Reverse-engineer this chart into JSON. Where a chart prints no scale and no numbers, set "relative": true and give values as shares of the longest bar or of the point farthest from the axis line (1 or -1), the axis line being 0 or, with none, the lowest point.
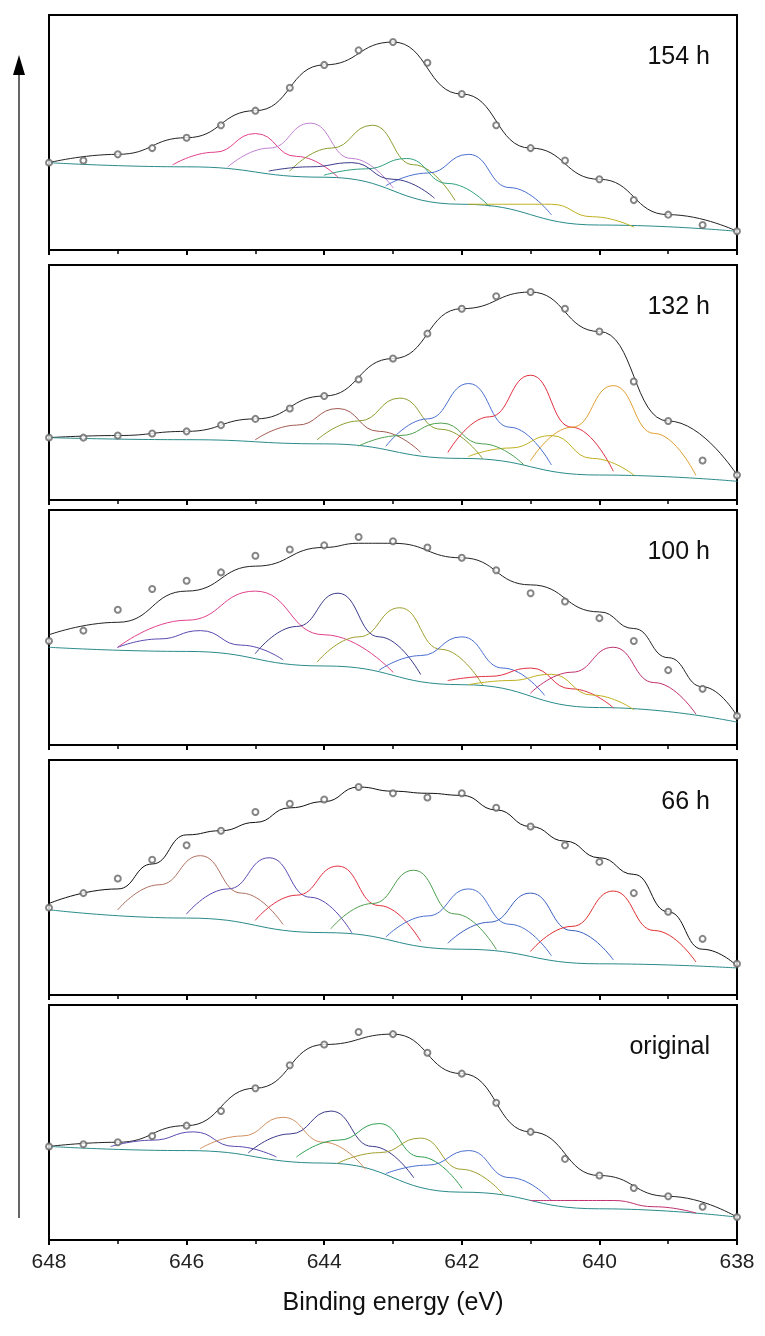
{
  "chart_data": [
    {
      "type": "line",
      "title": "154 h",
      "relative": true,
      "xlim": [
        648,
        638
      ],
      "xticks": [
        648,
        646,
        644,
        642,
        640,
        638
      ],
      "tick_labels": false,
      "series": [
        {
          "type": "scatter",
          "marker": "circle",
          "color": "#666666",
          "x": [
            648,
            647.5,
            647,
            646.5,
            646,
            645.5,
            645,
            644.5,
            644,
            643.5,
            643,
            642.5,
            642,
            641.5,
            641,
            640.5,
            640,
            639.5,
            639,
            638.5,
            638
          ],
          "values": [
            0.42,
            0.43,
            0.46,
            0.49,
            0.54,
            0.6,
            0.67,
            0.78,
            0.89,
            0.96,
            1.0,
            0.9,
            0.75,
            0.6,
            0.49,
            0.43,
            0.34,
            0.24,
            0.17,
            0.12,
            0.09
          ]
        },
        {
          "type": "line",
          "color": "#222222",
          "x": [
            648,
            647,
            646,
            645,
            644,
            643,
            642,
            641,
            640,
            639,
            638
          ],
          "values": [
            0.42,
            0.46,
            0.54,
            0.67,
            0.89,
            1.0,
            0.75,
            0.49,
            0.34,
            0.17,
            0.09
          ]
        },
        {
          "type": "line",
          "color": "#2a8a8a",
          "x": [
            648,
            646,
            644,
            642,
            640,
            638
          ],
          "values": [
            0.42,
            0.4,
            0.35,
            0.22,
            0.12,
            0.09
          ]
        },
        {
          "type": "line",
          "color": "#e0408a",
          "x": [
            646.2,
            645.6,
            645.0,
            644.4,
            643.8
          ],
          "values": [
            0.41,
            0.47,
            0.56,
            0.45,
            0.35
          ]
        },
        {
          "type": "line",
          "color": "#c080d0",
          "x": [
            645.4,
            644.8,
            644.2,
            643.6,
            643.0
          ],
          "values": [
            0.4,
            0.49,
            0.61,
            0.44,
            0.3
          ]
        },
        {
          "type": "line",
          "color": "#8aa030",
          "x": [
            644.5,
            643.9,
            643.3,
            642.7,
            642.1
          ],
          "values": [
            0.38,
            0.49,
            0.6,
            0.41,
            0.24
          ]
        },
        {
          "type": "line",
          "color": "#30a080",
          "x": [
            644.0,
            643.4,
            642.8,
            642.2,
            641.6
          ],
          "values": [
            0.36,
            0.39,
            0.44,
            0.32,
            0.21
          ]
        },
        {
          "type": "line",
          "color": "#4a6fd0",
          "x": [
            643.1,
            642.5,
            641.9,
            641.3,
            640.7
          ],
          "values": [
            0.31,
            0.37,
            0.46,
            0.3,
            0.17
          ]
        },
        {
          "type": "line",
          "color": "#3a3a8a",
          "x": [
            644.8,
            644.2,
            643.6,
            643.0,
            642.4
          ],
          "values": [
            0.38,
            0.4,
            0.42,
            0.34,
            0.25
          ]
        },
        {
          "type": "line",
          "color": "#c0b020",
          "x": [
            641.9,
            641.3,
            640.7,
            640.1,
            639.5
          ],
          "values": [
            0.22,
            0.22,
            0.22,
            0.16,
            0.11
          ]
        }
      ]
    },
    {
      "type": "line",
      "title": "132 h",
      "relative": true,
      "xlim": [
        648,
        638
      ],
      "xticks": [
        648,
        646,
        644,
        642,
        640,
        638
      ],
      "tick_labels": false,
      "series": [
        {
          "type": "scatter",
          "marker": "circle",
          "color": "#666666",
          "x": [
            648,
            647.5,
            647,
            646.5,
            646,
            645.5,
            645,
            644.5,
            644,
            643.5,
            643,
            642.5,
            642,
            641.5,
            641,
            640.5,
            640,
            639.5,
            639,
            638.5,
            638
          ],
          "values": [
            0.3,
            0.3,
            0.31,
            0.32,
            0.33,
            0.36,
            0.39,
            0.44,
            0.5,
            0.58,
            0.68,
            0.8,
            0.92,
            0.98,
            1.0,
            0.92,
            0.81,
            0.57,
            0.38,
            0.19,
            0.12
          ]
        },
        {
          "type": "line",
          "color": "#222222",
          "x": [
            648,
            647,
            646,
            645,
            644,
            643,
            642,
            641,
            640,
            639,
            638
          ],
          "values": [
            0.3,
            0.31,
            0.33,
            0.39,
            0.5,
            0.68,
            0.92,
            1.0,
            0.81,
            0.38,
            0.12
          ]
        },
        {
          "type": "line",
          "color": "#2a8a8a",
          "x": [
            648,
            646,
            644,
            642,
            640,
            638
          ],
          "values": [
            0.3,
            0.29,
            0.27,
            0.2,
            0.12,
            0.09
          ]
        },
        {
          "type": "line",
          "color": "#a05a50",
          "x": [
            645.0,
            644.4,
            643.8,
            643.2,
            642.6
          ],
          "values": [
            0.29,
            0.36,
            0.44,
            0.33,
            0.23
          ]
        },
        {
          "type": "line",
          "color": "#8aa030",
          "x": [
            644.1,
            643.5,
            642.9,
            642.3,
            641.7
          ],
          "values": [
            0.29,
            0.38,
            0.49,
            0.34,
            0.2
          ]
        },
        {
          "type": "line",
          "color": "#4a6fd0",
          "x": [
            643.1,
            642.5,
            641.9,
            641.3,
            640.7
          ],
          "values": [
            0.26,
            0.39,
            0.56,
            0.35,
            0.17
          ]
        },
        {
          "type": "line",
          "color": "#e03040",
          "x": [
            642.2,
            641.6,
            641.0,
            640.4,
            639.8
          ],
          "values": [
            0.23,
            0.4,
            0.6,
            0.35,
            0.14
          ]
        },
        {
          "type": "line",
          "color": "#e0a030",
          "x": [
            641.0,
            640.4,
            639.8,
            639.2,
            638.6
          ],
          "values": [
            0.19,
            0.35,
            0.55,
            0.32,
            0.12
          ]
        },
        {
          "type": "line",
          "color": "#c0b020",
          "x": [
            641.9,
            641.3,
            640.7,
            640.1,
            639.5
          ],
          "values": [
            0.21,
            0.25,
            0.31,
            0.2,
            0.12
          ]
        },
        {
          "type": "line",
          "color": "#50a050",
          "x": [
            643.5,
            642.9,
            642.3,
            641.7,
            641.1
          ],
          "values": [
            0.26,
            0.31,
            0.37,
            0.27,
            0.17
          ]
        }
      ]
    },
    {
      "type": "line",
      "title": "100 h",
      "relative": true,
      "xlim": [
        648,
        638
      ],
      "xticks": [
        648,
        646,
        644,
        642,
        640,
        638
      ],
      "tick_labels": false,
      "series": [
        {
          "type": "scatter",
          "marker": "circle",
          "color": "#666666",
          "x": [
            648,
            647.5,
            647,
            646.5,
            646,
            645.5,
            645,
            644.5,
            644,
            643.5,
            643,
            642.5,
            642,
            641.5,
            641,
            640.5,
            640,
            639.5,
            639,
            638.5,
            638
          ],
          "values": [
            0.5,
            0.55,
            0.65,
            0.75,
            0.79,
            0.83,
            0.91,
            0.94,
            0.96,
            1.0,
            0.98,
            0.95,
            0.9,
            0.84,
            0.73,
            0.69,
            0.61,
            0.5,
            0.36,
            0.27,
            0.14
          ]
        },
        {
          "type": "line",
          "color": "#222222",
          "x": [
            648,
            647,
            646,
            645,
            644,
            643.5,
            643,
            642,
            641,
            640,
            639.5,
            639,
            638.5,
            638
          ],
          "values": [
            0.53,
            0.59,
            0.74,
            0.86,
            0.95,
            0.97,
            0.97,
            0.9,
            0.77,
            0.64,
            0.56,
            0.42,
            0.28,
            0.14
          ]
        },
        {
          "type": "line",
          "color": "#2a8a8a",
          "x": [
            648,
            646,
            644,
            642,
            640,
            638
          ],
          "values": [
            0.47,
            0.45,
            0.38,
            0.29,
            0.18,
            0.11
          ]
        },
        {
          "type": "line",
          "color": "#e0408a",
          "x": [
            647.0,
            646.0,
            645.0,
            644.0,
            643.0
          ],
          "values": [
            0.47,
            0.6,
            0.74,
            0.53,
            0.35
          ]
        },
        {
          "type": "line",
          "color": "#5a4ab0",
          "x": [
            647.0,
            646.4,
            645.8,
            645.2,
            644.6
          ],
          "values": [
            0.47,
            0.51,
            0.55,
            0.48,
            0.41
          ]
        },
        {
          "type": "line",
          "color": "#3a3a8a",
          "x": [
            645.0,
            644.4,
            643.8,
            643.2,
            642.6
          ],
          "values": [
            0.44,
            0.57,
            0.73,
            0.52,
            0.34
          ]
        },
        {
          "type": "line",
          "color": "#a0a030",
          "x": [
            644.1,
            643.5,
            642.9,
            642.3,
            641.7
          ],
          "values": [
            0.4,
            0.52,
            0.66,
            0.46,
            0.29
          ]
        },
        {
          "type": "line",
          "color": "#4a6fd0",
          "x": [
            643.2,
            642.6,
            642.0,
            641.4,
            640.8
          ],
          "values": [
            0.36,
            0.43,
            0.52,
            0.37,
            0.24
          ]
        },
        {
          "type": "line",
          "color": "#e03040",
          "x": [
            642.2,
            641.6,
            641.0,
            640.4,
            639.8
          ],
          "values": [
            0.31,
            0.33,
            0.37,
            0.27,
            0.18
          ]
        },
        {
          "type": "line",
          "color": "#c0b020",
          "x": [
            641.9,
            641.3,
            640.7,
            640.1,
            639.5
          ],
          "values": [
            0.29,
            0.31,
            0.34,
            0.24,
            0.17
          ]
        },
        {
          "type": "line",
          "color": "#c03070",
          "x": [
            641.0,
            640.4,
            639.8,
            639.2,
            638.6
          ],
          "values": [
            0.25,
            0.35,
            0.47,
            0.3,
            0.15
          ]
        }
      ]
    },
    {
      "type": "line",
      "title": "66 h",
      "relative": true,
      "xlim": [
        648,
        638
      ],
      "xticks": [
        648,
        646,
        644,
        642,
        640,
        638
      ],
      "tick_labels": false,
      "series": [
        {
          "type": "scatter",
          "marker": "circle",
          "color": "#666666",
          "x": [
            648,
            647.5,
            647,
            646.5,
            646,
            645.5,
            645,
            644.5,
            644,
            643.5,
            643,
            642.5,
            642,
            641.5,
            641,
            640.5,
            640,
            639.5,
            639,
            638.5,
            638
          ],
          "values": [
            0.42,
            0.49,
            0.56,
            0.65,
            0.72,
            0.79,
            0.88,
            0.92,
            0.94,
            1.0,
            0.97,
            0.95,
            0.97,
            0.9,
            0.81,
            0.72,
            0.64,
            0.49,
            0.4,
            0.27,
            0.15
          ]
        },
        {
          "type": "line",
          "color": "#111111",
          "x": [
            648,
            647,
            646.5,
            646,
            645.5,
            645,
            644.5,
            644,
            643.5,
            643,
            642.5,
            642,
            641.5,
            641,
            640.5,
            640,
            639.5,
            639,
            638.5,
            638
          ],
          "values": [
            0.44,
            0.51,
            0.63,
            0.77,
            0.79,
            0.83,
            0.9,
            0.93,
            1.0,
            0.98,
            0.97,
            0.96,
            0.89,
            0.81,
            0.74,
            0.66,
            0.58,
            0.4,
            0.22,
            0.14
          ]
        },
        {
          "type": "line",
          "color": "#2a8a8a",
          "x": [
            648,
            646,
            644,
            642,
            640,
            638
          ],
          "values": [
            0.41,
            0.37,
            0.3,
            0.22,
            0.15,
            0.13
          ]
        },
        {
          "type": "line",
          "color": "#b07060",
          "x": [
            647.0,
            646.4,
            645.8,
            645.2,
            644.6
          ],
          "values": [
            0.41,
            0.53,
            0.67,
            0.49,
            0.34
          ]
        },
        {
          "type": "line",
          "color": "#5a4ab0",
          "x": [
            646.0,
            645.4,
            644.8,
            644.2,
            643.6
          ],
          "values": [
            0.39,
            0.51,
            0.66,
            0.47,
            0.3
          ]
        },
        {
          "type": "line",
          "color": "#e03040",
          "x": [
            645.0,
            644.4,
            643.8,
            643.2,
            642.6
          ],
          "values": [
            0.36,
            0.48,
            0.62,
            0.43,
            0.26
          ]
        },
        {
          "type": "line",
          "color": "#50a050",
          "x": [
            643.9,
            643.3,
            642.7,
            642.1,
            641.5
          ],
          "values": [
            0.32,
            0.44,
            0.6,
            0.39,
            0.22
          ]
        },
        {
          "type": "line",
          "color": "#4a70d0",
          "x": [
            643.1,
            642.5,
            641.9,
            641.3,
            640.7
          ],
          "values": [
            0.28,
            0.38,
            0.51,
            0.34,
            0.19
          ]
        },
        {
          "type": "line",
          "color": "#3a60c0",
          "x": [
            642.2,
            641.6,
            641.0,
            640.4,
            639.8
          ],
          "values": [
            0.25,
            0.35,
            0.49,
            0.31,
            0.17
          ]
        },
        {
          "type": "line",
          "color": "#e03030",
          "x": [
            641.0,
            640.4,
            639.8,
            639.2,
            638.6
          ],
          "values": [
            0.21,
            0.33,
            0.5,
            0.31,
            0.16
          ]
        }
      ]
    },
    {
      "type": "line",
      "title": "original",
      "xlabel": "Binding energy (eV)",
      "relative": true,
      "xlim": [
        648,
        638
      ],
      "xticks": [
        648,
        646,
        644,
        642,
        640,
        638
      ],
      "tick_labels": "x",
      "series": [
        {
          "type": "scatter",
          "marker": "circle",
          "color": "#666666",
          "x": [
            648,
            647.5,
            647,
            646.5,
            646,
            645.5,
            645,
            644.5,
            644,
            643.5,
            643,
            642.5,
            642,
            641.5,
            641,
            640.5,
            640,
            639.5,
            639,
            638.5,
            638
          ],
          "values": [
            0.45,
            0.46,
            0.47,
            0.5,
            0.55,
            0.62,
            0.73,
            0.84,
            0.94,
            1.0,
            0.99,
            0.9,
            0.8,
            0.66,
            0.52,
            0.39,
            0.31,
            0.25,
            0.21,
            0.16,
            0.11
          ]
        },
        {
          "type": "line",
          "color": "#222222",
          "x": [
            648,
            647,
            646,
            645,
            644,
            643,
            642,
            641,
            640,
            639,
            638
          ],
          "values": [
            0.45,
            0.47,
            0.55,
            0.73,
            0.94,
            0.99,
            0.8,
            0.52,
            0.31,
            0.21,
            0.11
          ]
        },
        {
          "type": "line",
          "color": "#2a8a8a",
          "x": [
            648,
            646,
            644,
            642,
            640,
            638
          ],
          "values": [
            0.45,
            0.43,
            0.37,
            0.23,
            0.15,
            0.11
          ]
        },
        {
          "type": "line",
          "color": "#5a4ab0",
          "x": [
            647.1,
            646.5,
            645.9,
            645.3,
            644.7
          ],
          "values": [
            0.45,
            0.48,
            0.52,
            0.45,
            0.4
          ]
        },
        {
          "type": "line",
          "color": "#d09060",
          "x": [
            645.8,
            645.2,
            644.6,
            644.0,
            643.4
          ],
          "values": [
            0.44,
            0.5,
            0.59,
            0.47,
            0.34
          ]
        },
        {
          "type": "line",
          "color": "#3a3a8a",
          "x": [
            645.1,
            644.5,
            643.9,
            643.3,
            642.7
          ],
          "values": [
            0.42,
            0.51,
            0.62,
            0.45,
            0.3
          ]
        },
        {
          "type": "line",
          "color": "#30a050",
          "x": [
            644.4,
            643.8,
            643.2,
            642.6,
            642.0
          ],
          "values": [
            0.4,
            0.48,
            0.56,
            0.4,
            0.25
          ]
        },
        {
          "type": "line",
          "color": "#a0a030",
          "x": [
            643.8,
            643.2,
            642.6,
            642.0,
            641.4
          ],
          "values": [
            0.37,
            0.42,
            0.49,
            0.34,
            0.22
          ]
        },
        {
          "type": "line",
          "color": "#4a6fd0",
          "x": [
            643.1,
            642.5,
            641.9,
            641.3,
            640.7
          ],
          "values": [
            0.32,
            0.36,
            0.43,
            0.3,
            0.19
          ]
        },
        {
          "type": "line",
          "color": "#c03070",
          "x": [
            641.0,
            640.4,
            639.8,
            639.2,
            638.6
          ],
          "values": [
            0.19,
            0.19,
            0.19,
            0.16,
            0.13
          ]
        }
      ]
    }
  ]
}
